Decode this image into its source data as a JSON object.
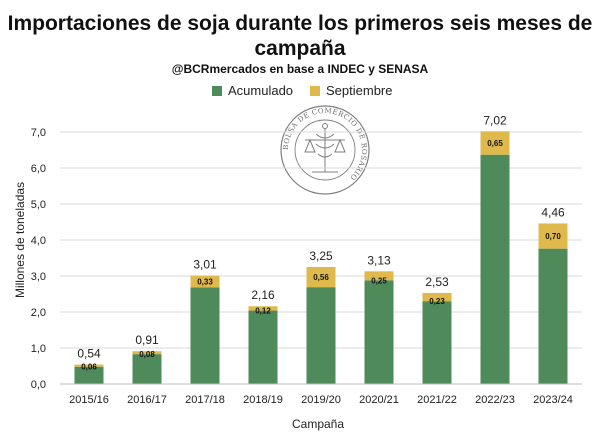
{
  "chart_data": {
    "type": "bar",
    "stacked": true,
    "title": "Importaciones de soja durante los primeros seis meses de campaña",
    "subtitle": "@BCRmercados en base a INDEC y SENASA",
    "xlabel": "Campaña",
    "ylabel": "Millones de toneladas",
    "ylim": [
      0,
      7
    ],
    "yticks": [
      "0,0",
      "1,0",
      "2,0",
      "3,0",
      "4,0",
      "5,0",
      "6,0",
      "7,0"
    ],
    "grid": true,
    "legend_position": "top-center",
    "categories": [
      "2015/16",
      "2016/17",
      "2017/18",
      "2018/19",
      "2019/20",
      "2020/21",
      "2021/22",
      "2022/23",
      "2023/24"
    ],
    "series": [
      {
        "name": "Acumulado",
        "color": "#4f8a5b",
        "values": [
          0.48,
          0.83,
          2.68,
          2.04,
          2.69,
          2.88,
          2.3,
          6.37,
          3.76
        ]
      },
      {
        "name": "Septiembre",
        "color": "#e0b94c",
        "values": [
          0.06,
          0.08,
          0.33,
          0.12,
          0.56,
          0.25,
          0.23,
          0.65,
          0.7
        ],
        "labels": [
          "0,06",
          "0,08",
          "0,33",
          "0,12",
          "0,56",
          "0,25",
          "0,23",
          "0,65",
          "0,70"
        ]
      }
    ],
    "totals": [
      0.54,
      0.91,
      3.01,
      2.16,
      3.25,
      3.13,
      2.53,
      7.02,
      4.46
    ],
    "total_labels": [
      "0,54",
      "0,91",
      "3,01",
      "2,16",
      "3,25",
      "3,13",
      "2,53",
      "7,02",
      "4,46"
    ]
  },
  "watermark": {
    "text": "BOLSA DE COMERCIO DE ROSARIO"
  }
}
